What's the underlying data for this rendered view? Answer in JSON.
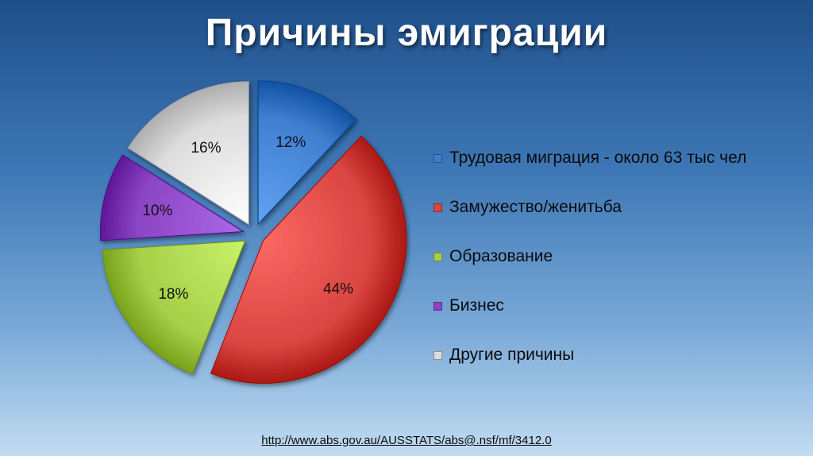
{
  "title": "Причины эмиграции",
  "chart_data": {
    "type": "pie",
    "categories": [
      "Трудовая миграция - около 63 тыс чел",
      "Замужество/женитьба",
      "Образование",
      "Бизнес",
      "Другие причины"
    ],
    "values": [
      12,
      44,
      18,
      10,
      16
    ],
    "value_labels": [
      "12%",
      "44%",
      "18%",
      "10%",
      "16%"
    ],
    "colors": [
      "#3f7fd0",
      "#d94541",
      "#a6cf48",
      "#8a45c3",
      "#dcdcdc"
    ],
    "exploded": true,
    "legend_position": "right"
  },
  "source_url": "http://www.abs.gov.au/AUSSTATS/abs@.nsf/mf/3412.0"
}
